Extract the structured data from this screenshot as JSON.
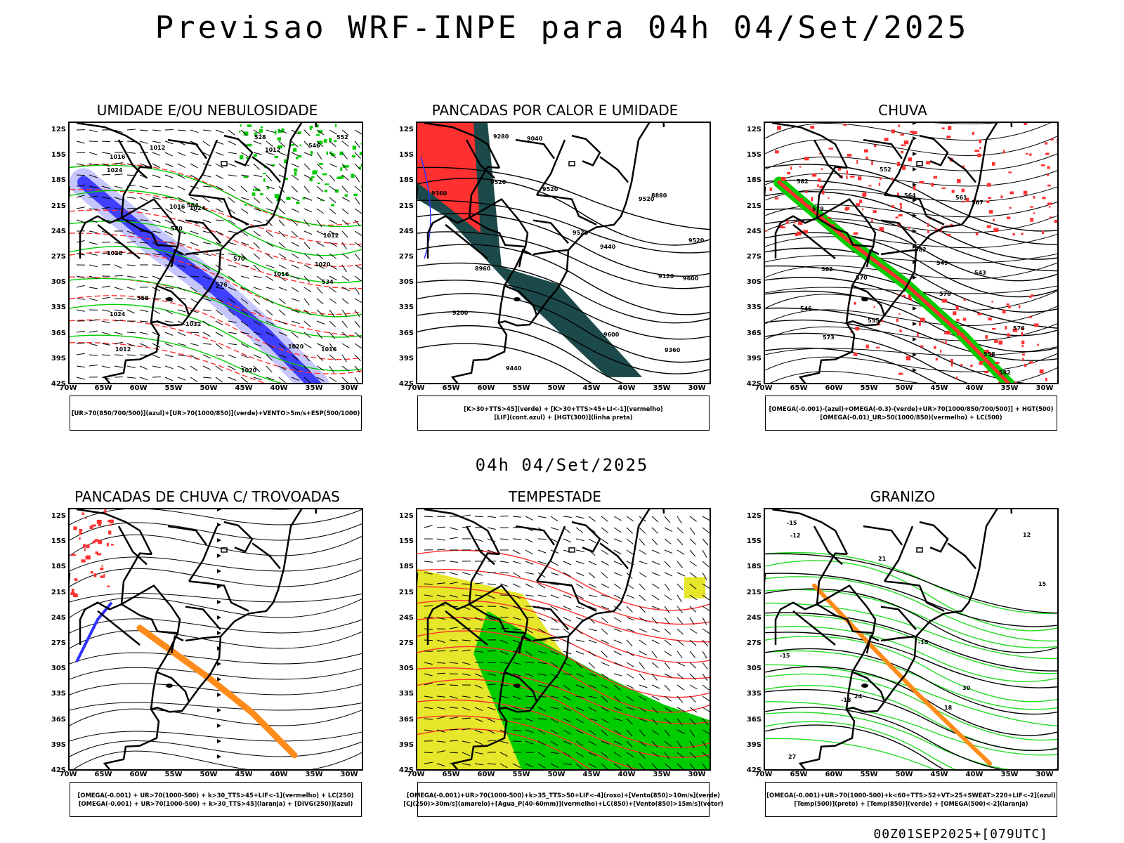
{
  "header": {
    "title": "Previsao WRF-INPE  para 04h 04/Set/2025",
    "mid_title": "04h 04/Set/2025"
  },
  "axes": {
    "lat_labels": [
      "12S",
      "15S",
      "18S",
      "21S",
      "24S",
      "27S",
      "30S",
      "33S",
      "36S",
      "39S",
      "42S"
    ],
    "lon_labels": [
      "70W",
      "65W",
      "60W",
      "55W",
      "50W",
      "45W",
      "40W",
      "35W",
      "30W"
    ]
  },
  "colors": {
    "red": "#ff3030",
    "blue": "#3030ff",
    "light_blue": "#b8b8ff",
    "green": "#00cc00",
    "bright_green": "#22dd22",
    "dark_teal": "#1c4a4a",
    "yellow": "#e6e62a",
    "orange": "#ff8c1a"
  },
  "panels": [
    {
      "id": "umidade",
      "title": "UMIDADE E/OU NEBULOSIDADE",
      "legend": [
        "[UR>70(850/700/500)](azul)+[UR>70(1000/850)](verde)+VENTO>5m/s+ESP(500/1000)"
      ],
      "contour_labels": [
        "1016",
        "1020",
        "1012",
        "1012",
        "1024",
        "1020",
        "1024",
        "1012",
        "1016",
        "1020",
        "1024",
        "1028",
        "1016",
        "1016",
        "1032",
        "1012",
        "576",
        "570",
        "564",
        "558",
        "552",
        "546",
        "540",
        "534",
        "528"
      ]
    },
    {
      "id": "pancadas-calor",
      "title": "PANCADAS POR CALOR E UMIDADE",
      "legend": [
        "[K>30+TTS>45](verde)  +  [K>30+TTS>45+LI<-1](vermelho)",
        "[LIF](cont.azul)  +  [HGT(300)](linha preta)"
      ],
      "contour_labels": [
        "9600",
        "9600",
        "9520",
        "9520",
        "9520",
        "9440",
        "9520",
        "9360",
        "9520",
        "9440",
        "9360",
        "9280",
        "9200",
        "9120",
        "9040",
        "8960",
        "8880"
      ]
    },
    {
      "id": "chuva",
      "title": "CHUVA",
      "legend": [
        "[OMEGA(-0.001)-(azul)+OMEGA(-0.3)-(verde)+UR>70(1000/850/700/500)]  +  HGT(500)",
        "[OMEGA(-0.01)_UR>50(1000/850)(vermelho)  +  LC(500)"
      ],
      "contour_labels": [
        "582",
        "582",
        "576",
        "582",
        "576",
        "579",
        "573",
        "570",
        "567",
        "564",
        "561",
        "558",
        "555",
        "552",
        "549",
        "546",
        "543",
        "582"
      ]
    },
    {
      "id": "trovoadas",
      "title": "PANCADAS DE CHUVA C/ TROVOADAS",
      "legend": [
        "[OMEGA(-0.001)  +  UR>70(1000-500)  +  k>30_TTS>45+LIF<-1](vermelho)  +  LC(250)",
        "[OMEGA(-0.001)  +  UR>70(1000-500)  +  k>30_TTS>45](laranja)  +  [DIVG(250)](azul)"
      ],
      "contour_labels": []
    },
    {
      "id": "tempestade",
      "title": "TEMPESTADE",
      "legend": [
        "[OMEGA(-0.001)+UR>70(1000-500)+k>35_TTS>50+LIF<-4](roxo)+[Vento(850)>10m/s](verde)",
        "[CJ(250)>30m/s](amarelo)+[Agua_P(40-60mm)](vermelho)+LC(850)+[Vento(850)>15m/s](vetor)"
      ],
      "contour_labels": []
    },
    {
      "id": "granizo",
      "title": "GRANIZO",
      "legend": [
        "[OMEGA(-0.001)+UR>70(1000-500)+k<60+TTS>52+VT>25+SWEAT>220+LIF<-2](azul)",
        "[Temp(500)](preto)  +  [Temp(850)](verde)  +  [OMEGA(500)<-2](laranja)"
      ],
      "contour_labels": [
        "-12",
        "-15",
        "-15",
        "12",
        "15",
        "18",
        "21",
        "24",
        "27",
        "30",
        "-18",
        "-15"
      ]
    }
  ],
  "footer": "00Z01SEP2025+[079UTC]"
}
